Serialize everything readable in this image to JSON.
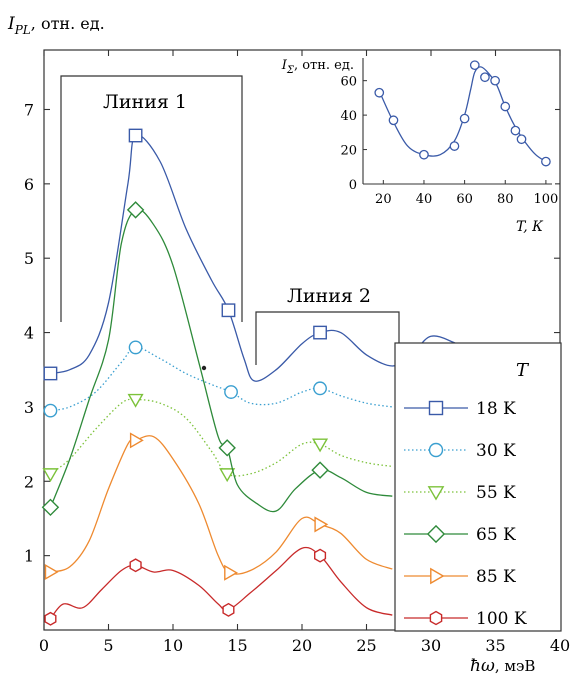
{
  "chart_data": [
    {
      "type": "line",
      "ylabel_main": "I",
      "ylabel_sub": "PL",
      "ylabel_rest": ", отн. ед.",
      "xlabel_sym": "ħω",
      "xlabel_unit": ", мэВ",
      "xlim": [
        0,
        40
      ],
      "ylim": [
        0,
        7.8
      ],
      "x_ticks": [
        0,
        5,
        10,
        15,
        20,
        25,
        30,
        35,
        40
      ],
      "y_ticks": [
        1,
        2,
        3,
        4,
        5,
        6,
        7
      ],
      "grid": false,
      "legend_title": "T",
      "legend_position": "lower-right",
      "annotations": {
        "line1": "Линия 1",
        "line2": "Линия 2"
      },
      "series": [
        {
          "name": "18 K",
          "color": "#3a5aa8",
          "style": "solid",
          "marker": "square",
          "x": [
            0.5,
            2,
            3.5,
            5,
            6.5,
            7.1,
            9,
            11,
            13,
            14.3,
            15.5,
            16.3,
            18,
            20,
            21.4,
            23,
            25,
            27,
            28.5,
            30,
            32,
            34,
            36,
            37.5,
            40
          ],
          "y": [
            3.45,
            3.5,
            3.7,
            4.4,
            6.0,
            6.65,
            6.3,
            5.4,
            4.7,
            4.3,
            3.65,
            3.35,
            3.5,
            3.85,
            4.0,
            4.0,
            3.7,
            3.55,
            3.7,
            3.95,
            3.85,
            3.7,
            3.7,
            3.75,
            3.75
          ],
          "marker_x": [
            0.5,
            7.1,
            14.3,
            21.4,
            37.5
          ],
          "marker_y": [
            3.45,
            6.65,
            4.3,
            4.0,
            3.75
          ]
        },
        {
          "name": "30 K",
          "color": "#3a9fd0",
          "style": "dotted",
          "marker": "circle",
          "x": [
            0.5,
            2,
            4,
            6,
            7.1,
            9,
            11,
            13,
            14.5,
            16,
            18,
            20,
            21.4,
            23,
            25,
            27
          ],
          "y": [
            2.95,
            3.0,
            3.2,
            3.6,
            3.8,
            3.65,
            3.45,
            3.3,
            3.2,
            3.05,
            3.05,
            3.2,
            3.25,
            3.15,
            3.05,
            3.0
          ],
          "marker_x": [
            0.5,
            7.1,
            14.5,
            21.4
          ],
          "marker_y": [
            2.95,
            3.8,
            3.2,
            3.25
          ]
        },
        {
          "name": "55 K",
          "color": "#7cc23a",
          "style": "dotted",
          "marker": "triangle-down",
          "x": [
            0.5,
            2,
            4,
            6,
            7.1,
            9,
            11,
            13,
            14.2,
            16,
            18,
            20,
            21.4,
            23,
            25,
            27
          ],
          "y": [
            2.1,
            2.3,
            2.7,
            3.05,
            3.1,
            3.05,
            2.85,
            2.4,
            2.1,
            2.1,
            2.25,
            2.5,
            2.5,
            2.35,
            2.25,
            2.2
          ],
          "marker_x": [
            0.5,
            7.1,
            14.2,
            21.4
          ],
          "marker_y": [
            2.1,
            3.1,
            2.1,
            2.5
          ]
        },
        {
          "name": "65 K",
          "color": "#2e8a3a",
          "style": "solid",
          "marker": "diamond",
          "x": [
            0.5,
            2,
            3.5,
            5,
            6,
            7.1,
            8.5,
            10,
            12,
            13.5,
            14.2,
            15,
            16.5,
            18,
            19.5,
            21.4,
            23,
            25,
            27
          ],
          "y": [
            1.65,
            2.3,
            3.1,
            3.9,
            5.2,
            5.65,
            5.45,
            4.9,
            3.6,
            2.6,
            2.45,
            1.95,
            1.7,
            1.6,
            1.9,
            2.15,
            2.05,
            1.85,
            1.8
          ],
          "marker_x": [
            0.5,
            7.1,
            14.2,
            21.4
          ],
          "marker_y": [
            1.65,
            5.65,
            2.45,
            2.15
          ]
        },
        {
          "name": "85 K",
          "color": "#ee8a30",
          "style": "solid",
          "marker": "triangle-right",
          "x": [
            0.5,
            2,
            3.5,
            5,
            6.5,
            7.1,
            8.5,
            10,
            12,
            13.5,
            14.4,
            16,
            18,
            20,
            21.4,
            23,
            25,
            27
          ],
          "y": [
            0.78,
            0.85,
            1.2,
            1.9,
            2.5,
            2.55,
            2.6,
            2.3,
            1.7,
            1.0,
            0.77,
            0.8,
            1.05,
            1.5,
            1.42,
            1.3,
            0.95,
            0.82
          ],
          "marker_x": [
            0.5,
            7.1,
            14.4,
            21.4
          ],
          "marker_y": [
            0.78,
            2.55,
            0.77,
            1.42
          ]
        },
        {
          "name": "100 K",
          "color": "#c82a2a",
          "style": "solid",
          "marker": "hexagon",
          "x": [
            0.5,
            1.5,
            3,
            4.5,
            6,
            7.1,
            8.5,
            10,
            12,
            13.5,
            14.3,
            16,
            18,
            20,
            21.4,
            23,
            25,
            27
          ],
          "y": [
            0.15,
            0.35,
            0.3,
            0.55,
            0.8,
            0.87,
            0.78,
            0.8,
            0.6,
            0.35,
            0.27,
            0.5,
            0.8,
            1.1,
            1.0,
            0.65,
            0.3,
            0.2
          ],
          "marker_x": [
            0.5,
            7.1,
            14.3,
            21.4
          ],
          "marker_y": [
            0.15,
            0.87,
            0.27,
            1.0
          ]
        }
      ]
    },
    {
      "type": "scatter",
      "ylabel_main": "I",
      "ylabel_sub": "Σ",
      "ylabel_rest": ", отн. ед.",
      "xlabel": "T, К",
      "xlim": [
        10,
        103
      ],
      "ylim": [
        0,
        72
      ],
      "x_ticks": [
        20,
        40,
        60,
        80,
        100
      ],
      "y_ticks": [
        0,
        20,
        40,
        60
      ],
      "grid": false,
      "points": {
        "x": [
          18,
          25,
          40,
          55,
          60,
          65,
          70,
          75,
          80,
          85,
          88,
          100
        ],
        "y": [
          53,
          37,
          17,
          22,
          38,
          69,
          62,
          60,
          45,
          31,
          26,
          13
        ]
      },
      "fit": {
        "x": [
          18,
          25,
          32,
          40,
          48,
          55,
          60,
          63,
          65,
          68,
          72,
          76,
          80,
          85,
          90,
          95,
          100
        ],
        "y": [
          54,
          36,
          22,
          17,
          17,
          25,
          40,
          55,
          65,
          68,
          64,
          57,
          45,
          33,
          24,
          17,
          13
        ]
      }
    }
  ]
}
